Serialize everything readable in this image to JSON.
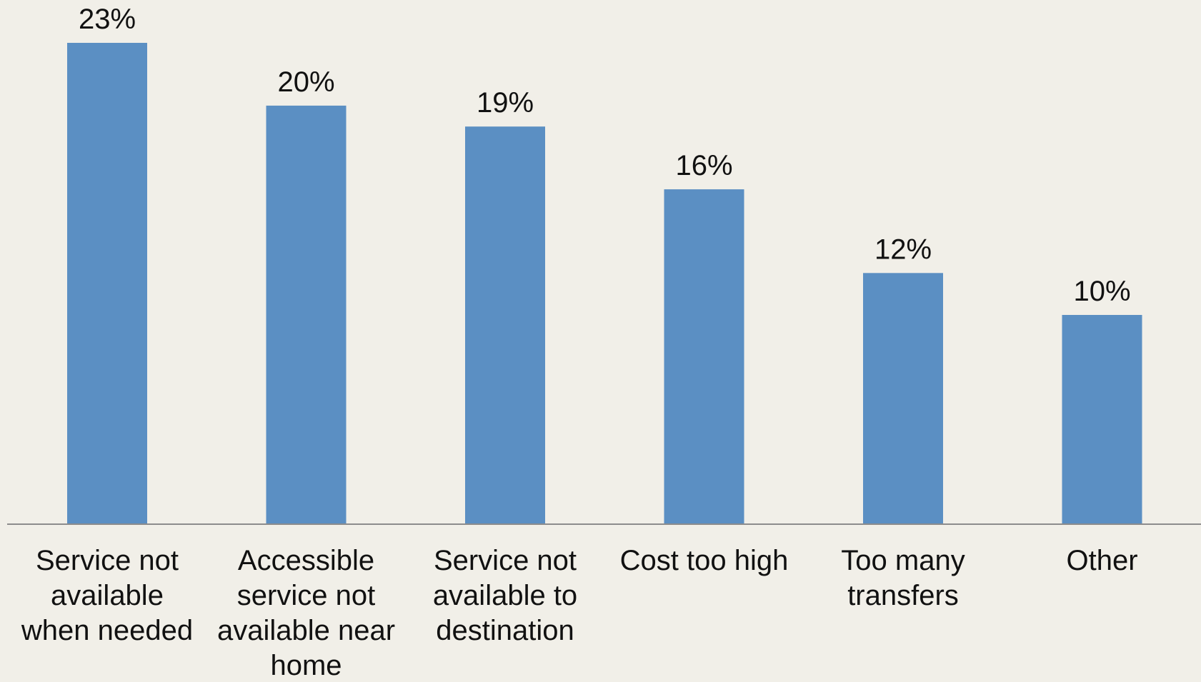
{
  "chart_data": {
    "type": "bar",
    "categories": [
      "Service not available when needed",
      "Accessible service not available near home",
      "Service not available to destination",
      "Cost too high",
      "Too many transfers",
      "Other"
    ],
    "category_lines": [
      [
        "Service not",
        "available",
        "when needed"
      ],
      [
        "Accessible",
        "service not",
        "available near",
        "home"
      ],
      [
        "Service not",
        "available to",
        "destination"
      ],
      [
        "Cost too high"
      ],
      [
        "Too many",
        "transfers"
      ],
      [
        "Other"
      ]
    ],
    "values": [
      23,
      20,
      19,
      16,
      12,
      10
    ],
    "value_labels": [
      "23%",
      "20%",
      "19%",
      "16%",
      "12%",
      "10%"
    ],
    "ylim": [
      0,
      25
    ],
    "grid": false,
    "legend": "none"
  },
  "colors": {
    "background": "#f1efe8",
    "bar": "#5b8fc3",
    "axis": "#8c8c8c",
    "text": "#111111"
  }
}
